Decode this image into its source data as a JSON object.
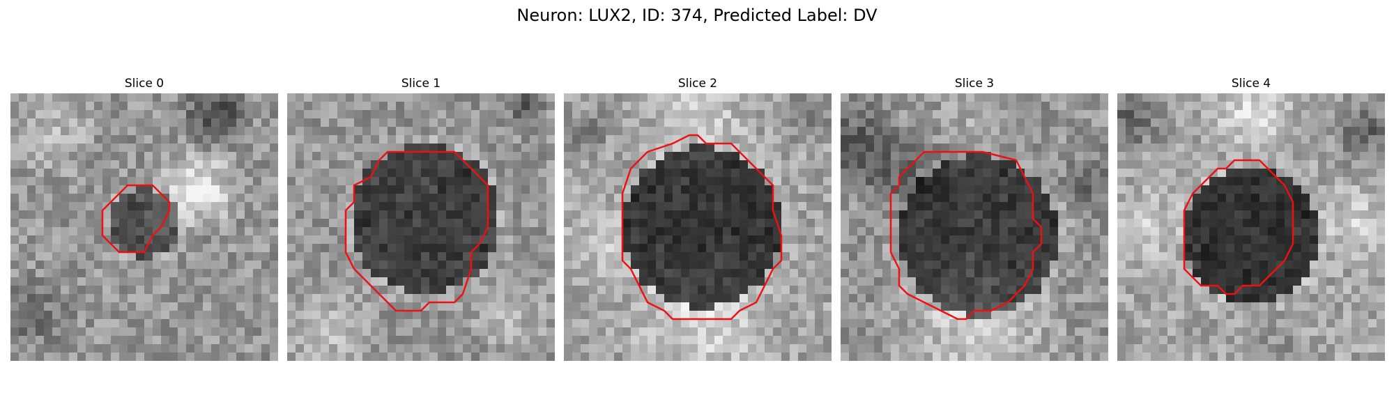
{
  "figure": {
    "title": "Neuron: LUX2, ID: 374, Predicted Label: DV"
  },
  "panels": [
    {
      "title": "Slice 0",
      "contour_color": "#ee1111",
      "soma_radius_fraction": 0.13,
      "brightness": "medium"
    },
    {
      "title": "Slice 1",
      "contour_color": "#ee1111",
      "soma_radius_fraction": 0.28,
      "brightness": "medium"
    },
    {
      "title": "Slice 2",
      "contour_color": "#ee1111",
      "soma_radius_fraction": 0.3,
      "brightness": "bright"
    },
    {
      "title": "Slice 3",
      "contour_color": "#ee1111",
      "soma_radius_fraction": 0.3,
      "brightness": "medium"
    },
    {
      "title": "Slice 4",
      "contour_color": "#ee1111",
      "soma_radius_fraction": 0.25,
      "brightness": "bright"
    }
  ],
  "colors": {
    "contour": "#ee1111",
    "background": "#ffffff"
  },
  "image_style": "grayscale pixelated microscopy crops with red soma contour"
}
